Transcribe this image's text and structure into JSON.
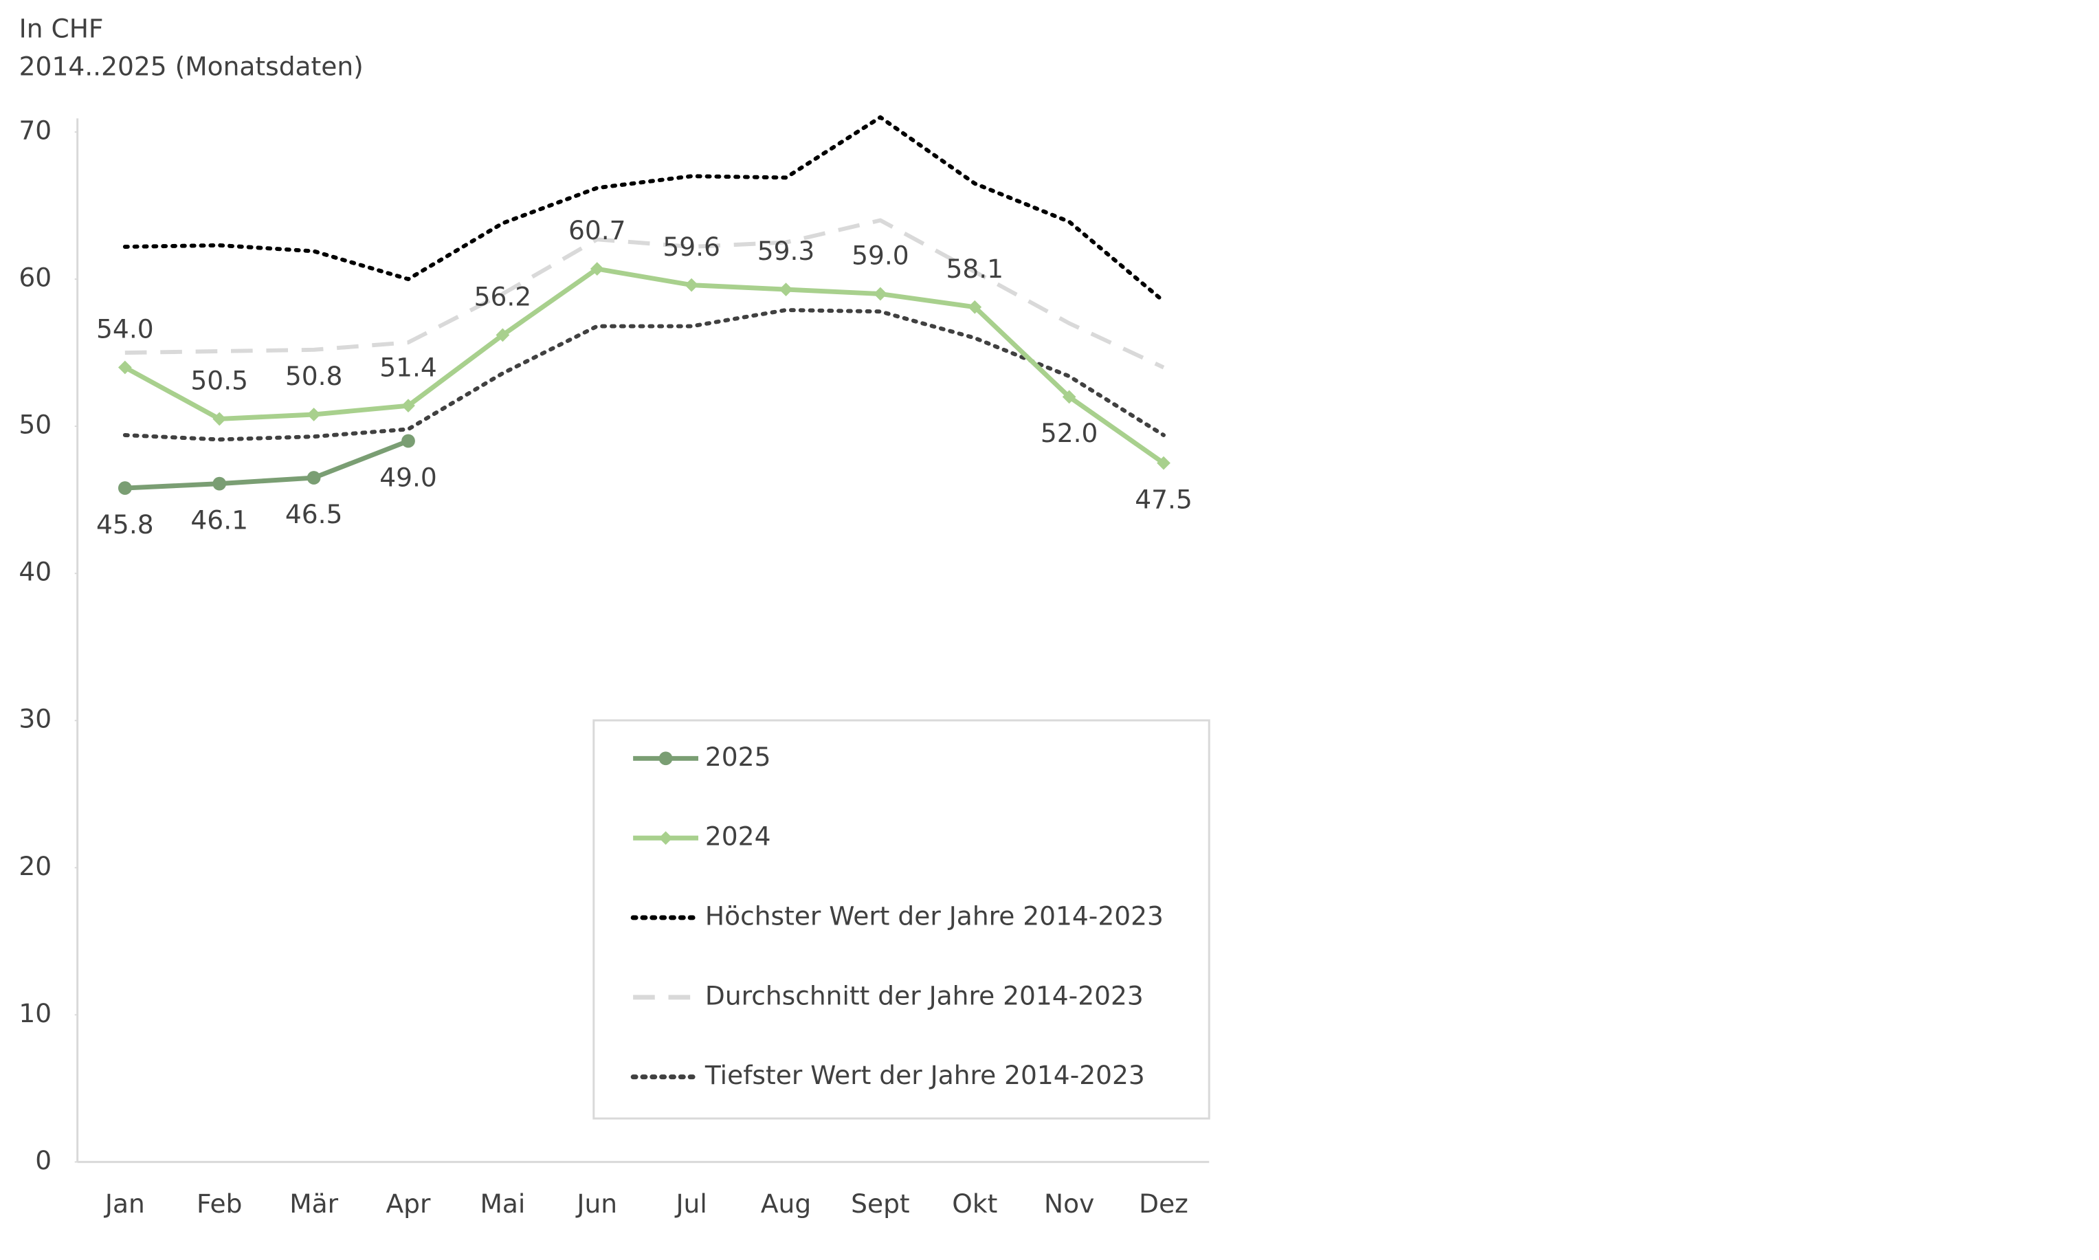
{
  "chart_data": {
    "type": "line",
    "subtitle_lines": [
      "In CHF",
      "2014..2025 (Monatsdaten)"
    ],
    "categories": [
      "Jan",
      "Feb",
      "Mär",
      "Apr",
      "Mai",
      "Jun",
      "Jul",
      "Aug",
      "Sept",
      "Okt",
      "Nov",
      "Dez"
    ],
    "series": [
      {
        "name": "2025",
        "color": "#7a9e73",
        "dash": "solid",
        "marker": "circle",
        "values": [
          45.8,
          46.1,
          46.5,
          49.0,
          null,
          null,
          null,
          null,
          null,
          null,
          null,
          null
        ],
        "value_labels": [
          "45.8",
          "46.1",
          "46.5",
          "49.0",
          null,
          null,
          null,
          null,
          null,
          null,
          null,
          null
        ]
      },
      {
        "name": "2024",
        "color": "#a8d08d",
        "dash": "solid",
        "marker": "diamond",
        "values": [
          54.0,
          50.5,
          50.8,
          51.4,
          56.2,
          60.7,
          59.6,
          59.3,
          59.0,
          58.1,
          52.0,
          47.5
        ],
        "value_labels": [
          "54.0",
          "50.5",
          "50.8",
          "51.4",
          "56.2",
          "60.7",
          "59.6",
          "59.3",
          "59.0",
          "58.1",
          "52.0",
          "47.5"
        ]
      },
      {
        "name": "Höchster Wert der Jahre 2014-2023",
        "color": "#000000",
        "dash": "dotted",
        "marker": "none",
        "values": [
          62.2,
          62.3,
          61.9,
          60.0,
          63.8,
          66.2,
          67.0,
          66.9,
          71.0,
          66.5,
          63.9,
          58.5
        ]
      },
      {
        "name": "Durchschnitt der Jahre 2014-2023",
        "color": "#d9d9d9",
        "dash": "dashed",
        "marker": "none",
        "values": [
          55.0,
          55.1,
          55.2,
          55.7,
          59.0,
          62.7,
          62.2,
          62.5,
          64.0,
          60.5,
          57.0,
          54.0
        ]
      },
      {
        "name": "Tiefster Wert der Jahre 2014-2023",
        "color": "#404040",
        "dash": "dotted",
        "marker": "none",
        "values": [
          49.4,
          49.1,
          49.3,
          49.8,
          53.6,
          56.8,
          56.8,
          57.9,
          57.8,
          56.0,
          53.4,
          49.4
        ]
      }
    ],
    "ylim": [
      0,
      70
    ],
    "yticks": [
      0,
      10,
      20,
      30,
      40,
      50,
      60,
      70
    ],
    "grid": false
  }
}
